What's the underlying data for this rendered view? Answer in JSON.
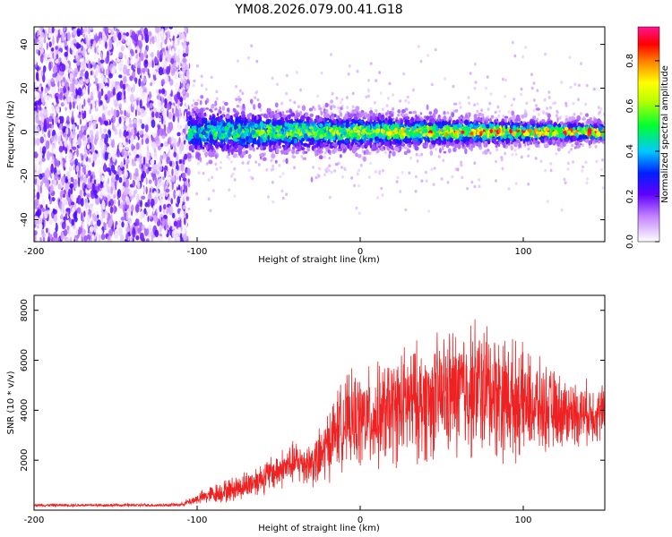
{
  "page_title": "YM08.2026.079.00.41.G18",
  "chart_data": [
    {
      "type": "heatmap",
      "xlabel": "Height of straight line (km)",
      "ylabel": "Frequency (Hz)",
      "xlim": [
        -200,
        150
      ],
      "ylim": [
        -50,
        48
      ],
      "x_ticks": [
        -200,
        -100,
        0,
        100
      ],
      "y_ticks": [
        -40,
        -20,
        0,
        20,
        40
      ],
      "regions": [
        {
          "x_range": [
            -200,
            -105
          ],
          "description": "noise",
          "freq_spread": [
            -50,
            48
          ],
          "amplitude": [
            0.0,
            0.25
          ]
        },
        {
          "x_range": [
            -105,
            150
          ],
          "description": "signal band",
          "center_freq": 0,
          "band_halfwidth": [
            10,
            4
          ],
          "peak_amplitude": 0.95
        }
      ],
      "colorbar": {
        "label": "Normalized spectral amplitude",
        "range": [
          0.0,
          0.95
        ],
        "ticks": [
          0.0,
          0.2,
          0.4,
          0.6,
          0.8
        ],
        "tick_labels": [
          "0.0",
          "0.2",
          "0.4",
          "0.6",
          "0.8"
        ],
        "colors": [
          "#ffffff",
          "#a020f0",
          "#0000ff",
          "#00e0ff",
          "#00ff40",
          "#ffff00",
          "#ff8000",
          "#ff0000",
          "#ff1493"
        ]
      }
    },
    {
      "type": "line",
      "xlabel": "Height of straight line (km)",
      "ylabel": "SNR (10 * v/v)",
      "xlim": [
        -200,
        150
      ],
      "ylim": [
        0,
        8600
      ],
      "x_ticks": [
        -200,
        -100,
        0,
        100
      ],
      "y_ticks": [
        2000,
        4000,
        6000,
        8000
      ],
      "color": "#ee2222",
      "series": [
        {
          "name": "SNR",
          "x": [
            -200,
            -180,
            -160,
            -140,
            -120,
            -110,
            -100,
            -90,
            -80,
            -70,
            -60,
            -50,
            -40,
            -30,
            -25,
            -20,
            -15,
            -10,
            -5,
            0,
            10,
            20,
            30,
            40,
            50,
            60,
            70,
            80,
            90,
            100,
            110,
            120,
            130,
            140,
            150
          ],
          "values": [
            200,
            200,
            200,
            200,
            200,
            220,
            450,
            650,
            800,
            1000,
            1300,
            1600,
            1900,
            1900,
            2000,
            2600,
            3200,
            3500,
            3600,
            3600,
            3700,
            4000,
            4300,
            4300,
            4600,
            4700,
            4900,
            4800,
            4500,
            4300,
            4100,
            4000,
            3900,
            3900,
            3900
          ],
          "noise_amplitude": [
            60,
            60,
            60,
            60,
            60,
            80,
            220,
            380,
            480,
            560,
            650,
            750,
            850,
            900,
            1200,
            1400,
            1500,
            1700,
            1800,
            1900,
            2000,
            2100,
            2300,
            2300,
            2400,
            2600,
            2700,
            2600,
            2400,
            2100,
            1800,
            1500,
            1300,
            1200,
            1100
          ]
        }
      ]
    }
  ]
}
